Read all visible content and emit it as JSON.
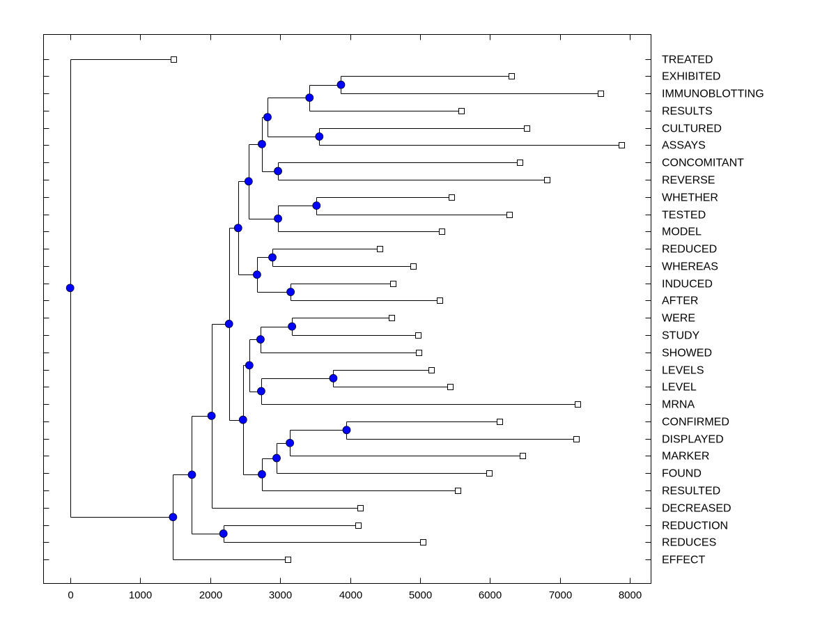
{
  "chart_data": {
    "type": "dendrogram",
    "title": "",
    "xlabel": "",
    "ylabel": "",
    "xlim": [
      -380,
      8300
    ],
    "xticks": [
      0,
      1000,
      2000,
      3000,
      4000,
      5000,
      6000,
      7000,
      8000
    ],
    "xtick_labels": [
      "0",
      "1000",
      "2000",
      "3000",
      "4000",
      "5000",
      "6000",
      "7000",
      "8000"
    ],
    "grid": false,
    "legend": "none",
    "node_color": "#0000ff",
    "leaf_marker": "open-square",
    "leaves": [
      {
        "label": "TREATED",
        "value": 1480
      },
      {
        "label": "EXHIBITED",
        "value": 6300
      },
      {
        "label": "IMMUNOBLOTTING",
        "value": 7580
      },
      {
        "label": "RESULTS",
        "value": 5590
      },
      {
        "label": "CULTURED",
        "value": 6520
      },
      {
        "label": "ASSAYS",
        "value": 7880
      },
      {
        "label": "CONCOMITANT",
        "value": 6420
      },
      {
        "label": "REVERSE",
        "value": 6810
      },
      {
        "label": "WHETHER",
        "value": 5450
      },
      {
        "label": "TESTED",
        "value": 6270
      },
      {
        "label": "MODEL",
        "value": 5310
      },
      {
        "label": "REDUCED",
        "value": 4420
      },
      {
        "label": "WHEREAS",
        "value": 4900
      },
      {
        "label": "INDUCED",
        "value": 4610
      },
      {
        "label": "AFTER",
        "value": 5280
      },
      {
        "label": "WERE",
        "value": 4590
      },
      {
        "label": "STUDY",
        "value": 4970
      },
      {
        "label": "SHOWED",
        "value": 4980
      },
      {
        "label": "LEVELS",
        "value": 5160
      },
      {
        "label": "LEVEL",
        "value": 5430
      },
      {
        "label": "MRNA",
        "value": 7250
      },
      {
        "label": "CONFIRMED",
        "value": 6130
      },
      {
        "label": "DISPLAYED",
        "value": 7230
      },
      {
        "label": "MARKER",
        "value": 6460
      },
      {
        "label": "FOUND",
        "value": 5990
      },
      {
        "label": "RESULTED",
        "value": 5540
      },
      {
        "label": "DECREASED",
        "value": 4140
      },
      {
        "label": "REDUCTION",
        "value": 4110
      },
      {
        "label": "REDUCES",
        "value": 5040
      },
      {
        "label": "EFFECT",
        "value": 3110
      }
    ],
    "tree": {
      "value": 0,
      "children": [
        {
          "leaf": 0
        },
        {
          "value": 1470,
          "children": [
            {
              "value": 1740,
              "children": [
                {
                  "value": 2020,
                  "children": [
                    {
                      "value": 2270,
                      "children": [
                        {
                          "value": 2400,
                          "children": [
                            {
                              "value": 2550,
                              "children": [
                                {
                                  "value": 2740,
                                  "children": [
                                    {
                                      "value": 2820,
                                      "children": [
                                        {
                                          "value": 3420,
                                          "children": [
                                            {
                                              "value": 3870,
                                              "children": [
                                                {
                                                  "leaf": 1
                                                },
                                                {
                                                  "leaf": 2
                                                }
                                              ]
                                            },
                                            {
                                              "leaf": 3
                                            }
                                          ]
                                        },
                                        {
                                          "value": 3560,
                                          "children": [
                                            {
                                              "leaf": 4
                                            },
                                            {
                                              "leaf": 5
                                            }
                                          ]
                                        }
                                      ]
                                    },
                                    {
                                      "value": 2970,
                                      "children": [
                                        {
                                          "leaf": 6
                                        },
                                        {
                                          "leaf": 7
                                        }
                                      ]
                                    }
                                  ]
                                },
                                {
                                  "value": 2970,
                                  "children": [
                                    {
                                      "value": 3520,
                                      "children": [
                                        {
                                          "leaf": 8
                                        },
                                        {
                                          "leaf": 9
                                        }
                                      ]
                                    },
                                    {
                                      "leaf": 10
                                    }
                                  ]
                                }
                              ]
                            },
                            {
                              "value": 2670,
                              "children": [
                                {
                                  "value": 2890,
                                  "children": [
                                    {
                                      "leaf": 11
                                    },
                                    {
                                      "leaf": 12
                                    }
                                  ]
                                },
                                {
                                  "value": 3150,
                                  "children": [
                                    {
                                      "leaf": 13
                                    },
                                    {
                                      "leaf": 14
                                    }
                                  ]
                                }
                              ]
                            }
                          ]
                        },
                        {
                          "value": 2470,
                          "children": [
                            {
                              "value": 2560,
                              "children": [
                                {
                                  "value": 2720,
                                  "children": [
                                    {
                                      "value": 3170,
                                      "children": [
                                        {
                                          "leaf": 15
                                        },
                                        {
                                          "leaf": 16
                                        }
                                      ]
                                    },
                                    {
                                      "leaf": 17
                                    }
                                  ]
                                },
                                {
                                  "value": 2730,
                                  "children": [
                                    {
                                      "value": 3760,
                                      "children": [
                                        {
                                          "leaf": 18
                                        },
                                        {
                                          "leaf": 19
                                        }
                                      ]
                                    },
                                    {
                                      "leaf": 20
                                    }
                                  ]
                                }
                              ]
                            },
                            {
                              "value": 2740,
                              "children": [
                                {
                                  "value": 2950,
                                  "children": [
                                    {
                                      "value": 3140,
                                      "children": [
                                        {
                                          "value": 3950,
                                          "children": [
                                            {
                                              "leaf": 21
                                            },
                                            {
                                              "leaf": 22
                                            }
                                          ]
                                        },
                                        {
                                          "leaf": 23
                                        }
                                      ]
                                    },
                                    {
                                      "leaf": 24
                                    }
                                  ]
                                },
                                {
                                  "leaf": 25
                                }
                              ]
                            }
                          ]
                        }
                      ]
                    },
                    {
                      "leaf": 26
                    }
                  ]
                },
                {
                  "value": 2190,
                  "children": [
                    {
                      "leaf": 27
                    },
                    {
                      "leaf": 28
                    }
                  ]
                }
              ]
            },
            {
              "leaf": 29
            }
          ]
        }
      ]
    }
  }
}
